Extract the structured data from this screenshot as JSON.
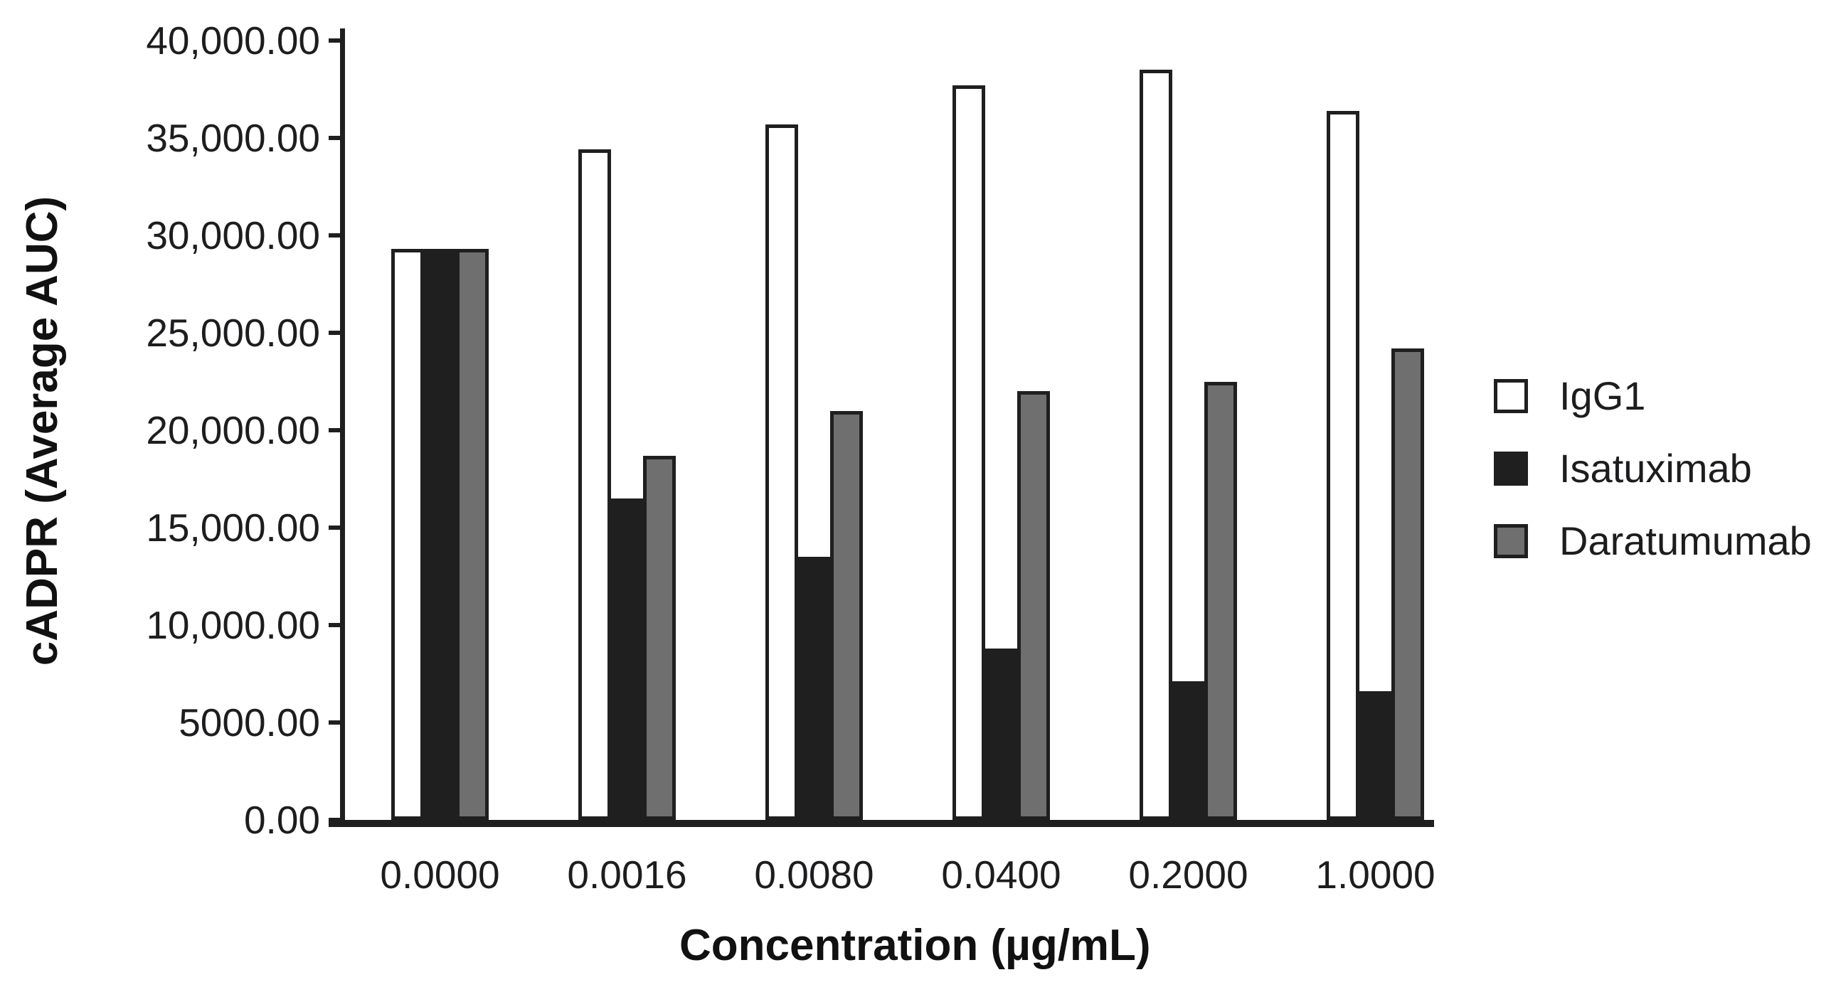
{
  "chart_data": {
    "type": "bar",
    "title": "",
    "xlabel": "Concentration (µg/mL)",
    "ylabel": "cADPR (Average AUC)",
    "categories": [
      "0.0000",
      "0.0016",
      "0.0080",
      "0.0400",
      "0.2000",
      "1.0000"
    ],
    "series": [
      {
        "name": "IgG1",
        "color": "#ffffff",
        "values": [
          29300,
          34400,
          35700,
          37700,
          38500,
          36400
        ]
      },
      {
        "name": "Isatuximab",
        "color": "#1f1f1f",
        "values": [
          29300,
          16500,
          13500,
          8800,
          7100,
          6600
        ]
      },
      {
        "name": "Daratumumab",
        "color": "#6f6f6f",
        "values": [
          29300,
          18700,
          21000,
          22000,
          22500,
          24200
        ]
      }
    ],
    "ylim": [
      0,
      40000
    ],
    "ytick_step": 5000,
    "ytick_labels": [
      "0.00",
      "5000.00",
      "10,000.00",
      "15,000.00",
      "20,000.00",
      "25,000.00",
      "30,000.00",
      "35,000.00",
      "40,000.00"
    ],
    "bar_outline": "#1f1f1f",
    "legend_position": "right",
    "grid": false
  }
}
